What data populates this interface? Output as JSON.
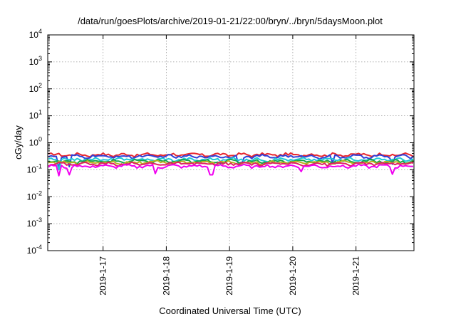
{
  "chart_data": {
    "type": "line",
    "title": "/data/run/goesPlots/archive/2019-01-21/22:00/bryn/../bryn/5daysMoon.plot",
    "xlabel": "Coordinated Universal Time (UTC)",
    "ylabel": "cGy/day",
    "y_scale": "log",
    "ylim": [
      0.0001,
      10000
    ],
    "y_ticks": [
      {
        "base": "10",
        "exp": "-4",
        "value": 0.0001
      },
      {
        "base": "10",
        "exp": "-3",
        "value": 0.001
      },
      {
        "base": "10",
        "exp": "-2",
        "value": 0.01
      },
      {
        "base": "10",
        "exp": "-1",
        "value": 0.1
      },
      {
        "base": "10",
        "exp": "0",
        "value": 1
      },
      {
        "base": "10",
        "exp": "1",
        "value": 10
      },
      {
        "base": "10",
        "exp": "2",
        "value": 100
      },
      {
        "base": "10",
        "exp": "3",
        "value": 1000
      },
      {
        "base": "10",
        "exp": "4",
        "value": 10000
      }
    ],
    "xlim": [
      "2019-01-16T03:00",
      "2019-01-21T22:00"
    ],
    "x_ticks": [
      {
        "label": "2019-1-17",
        "value": "2019-01-17T00:00"
      },
      {
        "label": "2019-1-18",
        "value": "2019-01-18T00:00"
      },
      {
        "label": "2019-1-19",
        "value": "2019-01-19T00:00"
      },
      {
        "label": "2019-1-20",
        "value": "2019-01-20T00:00"
      },
      {
        "label": "2019-1-21",
        "value": "2019-01-21T00:00"
      }
    ],
    "grid": true,
    "series": [
      {
        "color": "#e8262e",
        "level": 0.36,
        "spikes": []
      },
      {
        "color": "#2f3fd8",
        "level": 0.31,
        "spikes": [
          {
            "t": "2019-01-16T07:00",
            "v": 0.12
          },
          {
            "t": "2019-01-16T11:00",
            "v": 0.13
          },
          {
            "t": "2019-01-19T04:00",
            "v": 0.15
          },
          {
            "t": "2019-01-20T15:00",
            "v": 0.18
          },
          {
            "t": "2019-01-21T14:00",
            "v": 0.16
          }
        ]
      },
      {
        "color": "#1fc8d6",
        "level": 0.24,
        "spikes": [
          {
            "t": "2019-01-16T07:30",
            "v": 0.1
          }
        ]
      },
      {
        "color": "#17a34a",
        "level": 0.205,
        "spikes": []
      },
      {
        "color": "#b8b020",
        "level": 0.185,
        "spikes": []
      },
      {
        "color": "#e02060",
        "level": 0.165,
        "spikes": []
      },
      {
        "color": "#f000f0",
        "level": 0.135,
        "spikes": [
          {
            "t": "2019-01-16T07:00",
            "v": 0.06
          },
          {
            "t": "2019-01-16T11:00",
            "v": 0.065
          },
          {
            "t": "2019-01-17T20:00",
            "v": 0.072
          },
          {
            "t": "2019-01-18T17:00",
            "v": 0.065
          },
          {
            "t": "2019-01-20T03:00",
            "v": 0.085
          },
          {
            "t": "2019-01-21T14:00",
            "v": 0.068
          }
        ]
      }
    ]
  }
}
